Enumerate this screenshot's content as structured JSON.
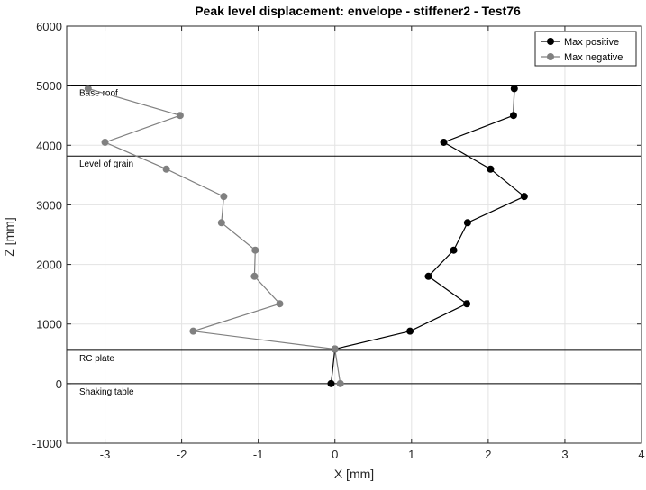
{
  "chart_data": {
    "type": "line",
    "title": "Peak level displacement: envelope - stiffener2 - Test76",
    "xlabel": "X [mm]",
    "ylabel": "Z [mm]",
    "xlim": [
      -3.5,
      4
    ],
    "ylim": [
      -1000,
      6000
    ],
    "x_ticks": [
      -3,
      -2,
      -1,
      0,
      1,
      2,
      3,
      4
    ],
    "x_tick_labels": [
      "-3",
      "-2",
      "-1",
      "0",
      "1",
      "2",
      "3",
      "4"
    ],
    "y_ticks": [
      -1000,
      0,
      1000,
      2000,
      3000,
      4000,
      5000,
      6000
    ],
    "y_tick_labels": [
      "-1000",
      "0",
      "1000",
      "2000",
      "3000",
      "4000",
      "5000",
      "6000"
    ],
    "grid": true,
    "legend_position": "top-right",
    "series": [
      {
        "name": "Max positive",
        "color": "#000000",
        "points": [
          [
            -0.05,
            0
          ],
          [
            0.0,
            580
          ],
          [
            0.98,
            880
          ],
          [
            1.72,
            1340
          ],
          [
            1.22,
            1800
          ],
          [
            1.55,
            2240
          ],
          [
            1.73,
            2700
          ],
          [
            2.47,
            3140
          ],
          [
            2.03,
            3600
          ],
          [
            1.42,
            4050
          ],
          [
            2.33,
            4500
          ],
          [
            2.34,
            4950
          ]
        ]
      },
      {
        "name": "Max negative",
        "color": "#808080",
        "points": [
          [
            0.07,
            0
          ],
          [
            0.0,
            580
          ],
          [
            -1.85,
            880
          ],
          [
            -0.72,
            1340
          ],
          [
            -1.05,
            1800
          ],
          [
            -1.04,
            2240
          ],
          [
            -1.48,
            2700
          ],
          [
            -1.45,
            3140
          ],
          [
            -2.2,
            3600
          ],
          [
            -3.0,
            4050
          ],
          [
            -2.02,
            4500
          ],
          [
            -3.22,
            4950
          ]
        ]
      }
    ],
    "reference_lines": [
      {
        "y": 0,
        "label": "Shaking table"
      },
      {
        "y": 560,
        "label": "RC plate"
      },
      {
        "y": 3820,
        "label": "Level of grain"
      },
      {
        "y": 5010,
        "label": "Base roof"
      }
    ]
  }
}
